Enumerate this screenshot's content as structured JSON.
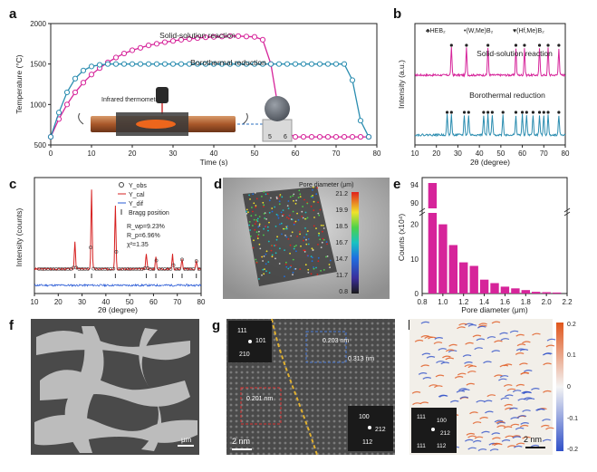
{
  "panel_labels": {
    "a": "a",
    "b": "b",
    "c": "c",
    "d": "d",
    "e": "e",
    "f": "f",
    "g": "g",
    "h": "h"
  },
  "chart_data": [
    {
      "id": "a",
      "type": "line",
      "xlabel": "Time (s)",
      "ylabel": "Temperature (°C)",
      "xlim": [
        0,
        80
      ],
      "ylim": [
        500,
        2000
      ],
      "xticks": [
        0,
        10,
        20,
        30,
        40,
        50,
        60,
        70,
        80
      ],
      "yticks": [
        500,
        1000,
        1500,
        2000
      ],
      "series": [
        {
          "name": "Solid-solution reaction",
          "color": "#d6249a",
          "x": [
            0,
            2,
            4,
            6,
            8,
            10,
            12,
            14,
            16,
            18,
            20,
            22,
            24,
            26,
            28,
            30,
            32,
            34,
            36,
            38,
            40,
            42,
            44,
            46,
            48,
            50,
            52,
            54,
            56,
            58,
            60,
            62,
            64,
            66,
            68,
            70,
            72,
            74,
            76,
            78
          ],
          "y": [
            600,
            820,
            1000,
            1150,
            1270,
            1370,
            1450,
            1520,
            1580,
            1630,
            1670,
            1700,
            1730,
            1750,
            1770,
            1785,
            1800,
            1810,
            1820,
            1830,
            1835,
            1840,
            1845,
            1845,
            1840,
            1835,
            1800,
            1500,
            900,
            650,
            600,
            600,
            600,
            600,
            600,
            600,
            600,
            600,
            600,
            600
          ]
        },
        {
          "name": "Borothermal reduction",
          "color": "#2b8db0",
          "x": [
            0,
            2,
            4,
            6,
            8,
            10,
            12,
            14,
            16,
            18,
            20,
            22,
            24,
            26,
            28,
            30,
            32,
            34,
            36,
            38,
            40,
            42,
            44,
            46,
            48,
            50,
            52,
            54,
            56,
            58,
            60,
            62,
            64,
            66,
            68,
            70,
            72,
            74,
            76,
            78
          ],
          "y": [
            600,
            900,
            1150,
            1320,
            1420,
            1470,
            1490,
            1500,
            1500,
            1500,
            1500,
            1500,
            1500,
            1500,
            1500,
            1500,
            1500,
            1500,
            1500,
            1500,
            1500,
            1500,
            1500,
            1500,
            1500,
            1500,
            1500,
            1500,
            1500,
            1500,
            1500,
            1500,
            1500,
            1500,
            1500,
            1500,
            1500,
            1300,
            800,
            600
          ]
        }
      ],
      "annotations": {
        "inset_label": "Infrared thermometer",
        "ruler_ticks": [
          "5",
          "6"
        ]
      }
    },
    {
      "id": "b",
      "type": "line",
      "xlabel": "2θ (degree)",
      "ylabel": "Intensity (a.u.)",
      "xlim": [
        10,
        80
      ],
      "xticks": [
        10,
        20,
        30,
        40,
        50,
        60,
        70,
        80
      ],
      "legend": [
        "♣HEB₂",
        "•(W,Me)B₂",
        "♥(Hf,Me)B₂"
      ],
      "series": [
        {
          "name": "Solid-solution reaction",
          "color": "#d6249a",
          "peaks": [
            27,
            34,
            44,
            57,
            61,
            68,
            72,
            77
          ]
        },
        {
          "name": "Borothermal reduction",
          "color": "#2b8db0",
          "peaks": [
            25,
            27,
            33,
            35,
            42,
            44,
            46,
            51,
            57,
            60,
            62,
            65,
            68,
            70,
            72,
            77
          ]
        }
      ]
    },
    {
      "id": "c",
      "type": "line",
      "xlabel": "2θ (degree)",
      "ylabel": "Intensity (counts)",
      "xlim": [
        10,
        80
      ],
      "xticks": [
        10,
        20,
        30,
        40,
        50,
        60,
        70,
        80
      ],
      "legend": [
        "Y_obs",
        "Y_cal",
        "Y_dif",
        "Bragg position"
      ],
      "stats": [
        "R_wp=9.23%",
        "R_p=6.96%",
        "χ²=1.35"
      ],
      "peaks": [
        {
          "x": 27,
          "h": 0.35
        },
        {
          "x": 34,
          "h": 1.0
        },
        {
          "x": 44,
          "h": 0.8
        },
        {
          "x": 57,
          "h": 0.2
        },
        {
          "x": 61,
          "h": 0.15
        },
        {
          "x": 68,
          "h": 0.18
        },
        {
          "x": 72,
          "h": 0.12
        },
        {
          "x": 78,
          "h": 0.1
        }
      ]
    },
    {
      "id": "e",
      "type": "bar",
      "xlabel": "Pore diameter (μm)",
      "ylabel": "Counts (x10⁴)",
      "xlim": [
        0.8,
        2.2
      ],
      "xticks": [
        0.8,
        1.0,
        1.2,
        1.4,
        1.6,
        1.8,
        2.0,
        2.2
      ],
      "yticks_lower": [
        0,
        10,
        20
      ],
      "yticks_upper": [
        90,
        94
      ],
      "bins": [
        0.9,
        1.0,
        1.1,
        1.2,
        1.3,
        1.4,
        1.5,
        1.6,
        1.7,
        1.8,
        1.9,
        2.0,
        2.1
      ],
      "values": [
        93,
        20,
        14,
        9,
        8,
        4,
        3,
        2,
        1.5,
        1,
        0.5,
        0.4,
        0.3
      ],
      "color": "#d6249a"
    }
  ],
  "panel_d": {
    "colorbar_title": "Pore diameter (μm)",
    "colorbar_ticks": [
      "21.2",
      "19.9",
      "18.5",
      "16.7",
      "14.7",
      "11.7",
      "0.8"
    ]
  },
  "panel_f": {
    "scalebar": "μm"
  },
  "panel_g": {
    "scalebar": "2 nm",
    "d_spacings": [
      "0.203 nm",
      "0.313 nm",
      "0.201 nm"
    ],
    "fft_top_labels": [
      "111",
      "101",
      "210"
    ],
    "fft_bottom_labels": [
      "100",
      "212",
      "112"
    ]
  },
  "panel_h": {
    "scalebar": "2 nm",
    "colorbar_ticks": [
      "0.2",
      "0.1",
      "0",
      "-0.1",
      "-0.2"
    ],
    "fft_labels": [
      "111",
      "100",
      "212",
      "111",
      "112"
    ]
  }
}
